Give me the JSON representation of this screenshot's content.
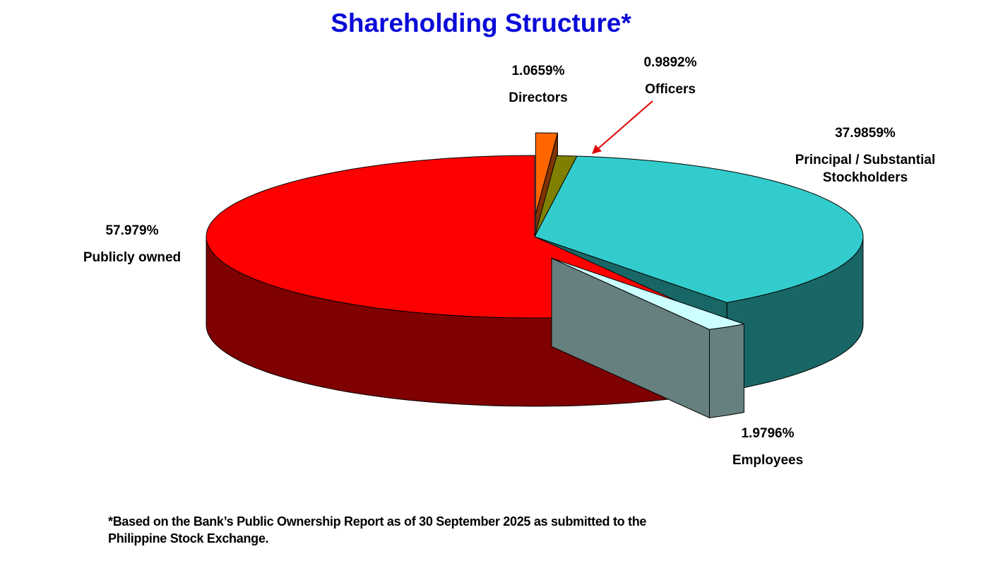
{
  "chart_data": {
    "type": "pie3d",
    "title": "Shareholding Structure*",
    "categories": [
      "Directors",
      "Officers",
      "Principal / Substantial Stockholders",
      "Employees",
      "Publicly owned"
    ],
    "values": [
      1.0659,
      0.9892,
      37.9859,
      1.9796,
      57.979
    ],
    "value_labels": [
      "1.0659%",
      "0.9892%",
      "37.9859%",
      "1.9796%",
      "57.979%"
    ],
    "colors": [
      "#ff6600",
      "#808000",
      "#33cccc",
      "#ccffff",
      "#ff0000"
    ],
    "footnote": "*Based on the Bank’s Public Ownership Report as of 30 September 2025 as submitted to the Philippine Stock Exchange."
  }
}
